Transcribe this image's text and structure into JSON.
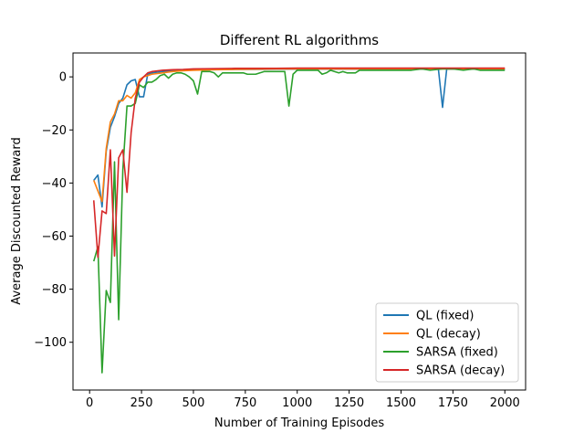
{
  "chart_data": {
    "type": "line",
    "title": "Different RL algorithms",
    "xlabel": "Number of Training Episodes",
    "ylabel": "Average Discounted Reward",
    "xlim": [
      -80,
      2100
    ],
    "ylim": [
      -118,
      9
    ],
    "xticks": [
      0,
      250,
      500,
      750,
      1000,
      1250,
      1500,
      1750,
      2000
    ],
    "yticks": [
      0,
      -20,
      -40,
      -60,
      -80,
      -100
    ],
    "grid": false,
    "legend_position": "lower-right",
    "series": [
      {
        "name": "QL (fixed)",
        "color": "#1f77b4",
        "points": [
          [
            20,
            -39
          ],
          [
            40,
            -37
          ],
          [
            60,
            -49
          ],
          [
            80,
            -28
          ],
          [
            100,
            -19
          ],
          [
            120,
            -15
          ],
          [
            140,
            -10
          ],
          [
            160,
            -8
          ],
          [
            180,
            -3
          ],
          [
            200,
            -1.5
          ],
          [
            220,
            -1
          ],
          [
            240,
            -7.5
          ],
          [
            260,
            -7.5
          ],
          [
            280,
            1
          ],
          [
            300,
            1.5
          ],
          [
            350,
            2
          ],
          [
            400,
            2.3
          ],
          [
            450,
            2.5
          ],
          [
            500,
            2.6
          ],
          [
            600,
            2.7
          ],
          [
            700,
            2.8
          ],
          [
            800,
            2.8
          ],
          [
            900,
            2.9
          ],
          [
            1000,
            2.9
          ],
          [
            1100,
            2.9
          ],
          [
            1200,
            2.9
          ],
          [
            1300,
            2.9
          ],
          [
            1400,
            2.9
          ],
          [
            1500,
            2.9
          ],
          [
            1600,
            2.9
          ],
          [
            1680,
            2.9
          ],
          [
            1700,
            -11.5
          ],
          [
            1720,
            2.9
          ],
          [
            1800,
            2.9
          ],
          [
            1900,
            2.9
          ],
          [
            2000,
            2.9
          ]
        ]
      },
      {
        "name": "QL (decay)",
        "color": "#ff7f0e",
        "points": [
          [
            20,
            -39
          ],
          [
            40,
            -43
          ],
          [
            60,
            -47
          ],
          [
            80,
            -27
          ],
          [
            100,
            -17
          ],
          [
            120,
            -14
          ],
          [
            140,
            -9
          ],
          [
            160,
            -9
          ],
          [
            180,
            -7
          ],
          [
            200,
            -8
          ],
          [
            220,
            -6
          ],
          [
            240,
            -1
          ],
          [
            260,
            0
          ],
          [
            280,
            0.5
          ],
          [
            300,
            1
          ],
          [
            350,
            1.5
          ],
          [
            400,
            2
          ],
          [
            450,
            2.3
          ],
          [
            500,
            2.5
          ],
          [
            600,
            2.7
          ],
          [
            700,
            2.8
          ],
          [
            800,
            2.9
          ],
          [
            900,
            3
          ],
          [
            1000,
            3
          ],
          [
            1100,
            3
          ],
          [
            1200,
            3
          ],
          [
            1300,
            3
          ],
          [
            1400,
            3
          ],
          [
            1500,
            3
          ],
          [
            1600,
            3
          ],
          [
            1700,
            3
          ],
          [
            1800,
            3
          ],
          [
            1900,
            3
          ],
          [
            2000,
            3
          ]
        ]
      },
      {
        "name": "SARSA (fixed)",
        "color": "#2ca02c",
        "points": [
          [
            20,
            -69.5
          ],
          [
            40,
            -64
          ],
          [
            60,
            -111.5
          ],
          [
            80,
            -80.5
          ],
          [
            100,
            -85
          ],
          [
            120,
            -32
          ],
          [
            140,
            -91.5
          ],
          [
            160,
            -35
          ],
          [
            180,
            -11
          ],
          [
            200,
            -11
          ],
          [
            220,
            -10
          ],
          [
            240,
            -3
          ],
          [
            260,
            -4
          ],
          [
            280,
            -2
          ],
          [
            300,
            -2
          ],
          [
            320,
            -1
          ],
          [
            340,
            0.5
          ],
          [
            360,
            1
          ],
          [
            380,
            -0.5
          ],
          [
            400,
            1
          ],
          [
            420,
            1.5
          ],
          [
            440,
            1.5
          ],
          [
            460,
            1
          ],
          [
            480,
            0
          ],
          [
            500,
            -1.5
          ],
          [
            520,
            -6.5
          ],
          [
            540,
            2
          ],
          [
            560,
            2
          ],
          [
            580,
            2
          ],
          [
            600,
            1.5
          ],
          [
            620,
            0
          ],
          [
            640,
            1.5
          ],
          [
            660,
            1.5
          ],
          [
            700,
            1.5
          ],
          [
            740,
            1.5
          ],
          [
            760,
            1
          ],
          [
            780,
            1
          ],
          [
            800,
            1
          ],
          [
            840,
            2
          ],
          [
            880,
            2
          ],
          [
            920,
            2
          ],
          [
            940,
            2
          ],
          [
            960,
            -11
          ],
          [
            980,
            1
          ],
          [
            1000,
            2.5
          ],
          [
            1040,
            2.5
          ],
          [
            1080,
            2.5
          ],
          [
            1100,
            2.5
          ],
          [
            1120,
            1
          ],
          [
            1140,
            1.5
          ],
          [
            1160,
            2.5
          ],
          [
            1180,
            2
          ],
          [
            1200,
            1.5
          ],
          [
            1220,
            2
          ],
          [
            1240,
            1.5
          ],
          [
            1260,
            1.5
          ],
          [
            1280,
            1.5
          ],
          [
            1300,
            2.5
          ],
          [
            1350,
            2.5
          ],
          [
            1400,
            2.5
          ],
          [
            1450,
            2.5
          ],
          [
            1500,
            2.5
          ],
          [
            1550,
            2.5
          ],
          [
            1600,
            3
          ],
          [
            1640,
            2.5
          ],
          [
            1700,
            3
          ],
          [
            1750,
            3
          ],
          [
            1800,
            2.5
          ],
          [
            1850,
            3
          ],
          [
            1880,
            2.5
          ],
          [
            1920,
            2.5
          ],
          [
            1960,
            2.5
          ],
          [
            2000,
            2.5
          ]
        ]
      },
      {
        "name": "SARSA (decay)",
        "color": "#d62728",
        "points": [
          [
            20,
            -46.5
          ],
          [
            40,
            -68
          ],
          [
            60,
            -50.5
          ],
          [
            80,
            -51.5
          ],
          [
            100,
            -27.5
          ],
          [
            120,
            -67.5
          ],
          [
            140,
            -30.5
          ],
          [
            160,
            -27.5
          ],
          [
            180,
            -43.5
          ],
          [
            200,
            -21
          ],
          [
            220,
            -8
          ],
          [
            240,
            -2
          ],
          [
            260,
            0
          ],
          [
            280,
            1.5
          ],
          [
            300,
            2
          ],
          [
            350,
            2.5
          ],
          [
            400,
            2.7
          ],
          [
            450,
            2.8
          ],
          [
            500,
            3
          ],
          [
            600,
            3.1
          ],
          [
            700,
            3.2
          ],
          [
            800,
            3.2
          ],
          [
            900,
            3.2
          ],
          [
            1000,
            3.3
          ],
          [
            1100,
            3.3
          ],
          [
            1200,
            3.3
          ],
          [
            1300,
            3.3
          ],
          [
            1400,
            3.3
          ],
          [
            1500,
            3.3
          ],
          [
            1600,
            3.3
          ],
          [
            1700,
            3.3
          ],
          [
            1800,
            3.3
          ],
          [
            1900,
            3.3
          ],
          [
            2000,
            3.3
          ]
        ]
      }
    ]
  }
}
